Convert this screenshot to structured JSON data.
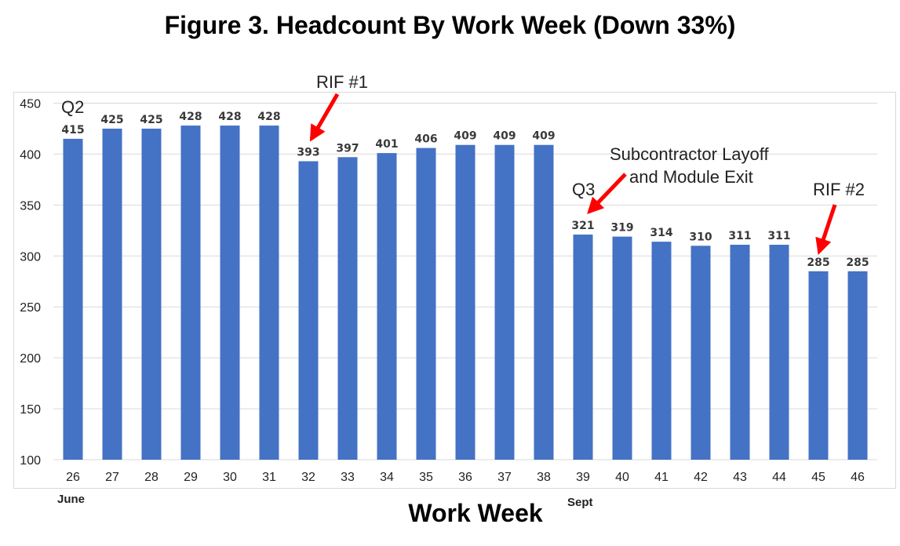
{
  "chart_data": {
    "type": "bar",
    "title": "Figure 3. Headcount By Work Week (Down 33%)",
    "xlabel": "Work Week",
    "ylabel": "",
    "ylim": [
      100,
      450
    ],
    "yticks": [
      100,
      150,
      200,
      250,
      300,
      350,
      400,
      450
    ],
    "grid": true,
    "bar_color": "#4472C4",
    "arrow_color": "#ff0000",
    "categories": [
      "26",
      "27",
      "28",
      "29",
      "30",
      "31",
      "32",
      "33",
      "34",
      "35",
      "36",
      "37",
      "38",
      "39",
      "40",
      "41",
      "42",
      "43",
      "44",
      "45",
      "46"
    ],
    "values": [
      415,
      425,
      425,
      428,
      428,
      428,
      393,
      397,
      401,
      406,
      409,
      409,
      409,
      321,
      319,
      314,
      310,
      311,
      311,
      285,
      285
    ],
    "month_labels": [
      {
        "text": "June",
        "category": "26"
      },
      {
        "text": "Sept",
        "category": "39"
      }
    ],
    "annotations": [
      {
        "text": "Q2",
        "category": "26"
      },
      {
        "text": "RIF #1",
        "category": "32"
      },
      {
        "text": "Q3",
        "category": "39"
      },
      {
        "text": "Subcontractor Layoff",
        "line2": "and Module Exit",
        "category": "39"
      },
      {
        "text": "RIF #2",
        "category": "45"
      }
    ]
  }
}
